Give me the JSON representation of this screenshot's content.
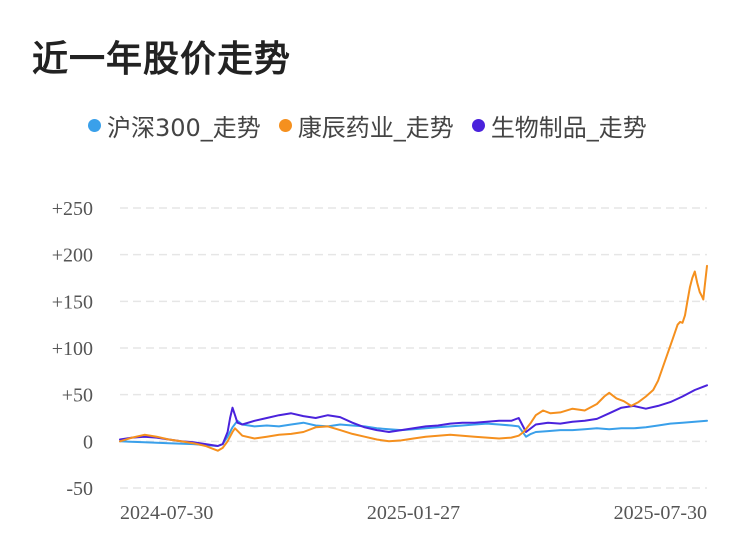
{
  "title": "近一年股价走势",
  "colors": {
    "hs300": "#3aa0ea",
    "kangchen": "#f5901e",
    "bio": "#4a22dc",
    "grid": "#e6e6e6"
  },
  "chart_data": {
    "type": "line",
    "title": "近一年股价走势",
    "xlabel": "",
    "ylabel": "",
    "ylim": [
      -50,
      250
    ],
    "yticks": [
      -50,
      0,
      50,
      100,
      150,
      200,
      250
    ],
    "ytick_labels": [
      "-50",
      "0",
      "+50",
      "+100",
      "+150",
      "+200",
      "+250"
    ],
    "xtick_labels": [
      "2024-07-30",
      "2025-01-27",
      "2025-07-30"
    ],
    "x_range": [
      0,
      240
    ],
    "xtick_positions": [
      0,
      120,
      240
    ],
    "grid": true,
    "legend_position": "top-left",
    "series": [
      {
        "name": "沪深300_走势",
        "color": "#3aa0ea",
        "points": [
          [
            0,
            0
          ],
          [
            10,
            -1
          ],
          [
            20,
            -2
          ],
          [
            30,
            -3
          ],
          [
            35,
            -4
          ],
          [
            40,
            -5
          ],
          [
            42,
            -3
          ],
          [
            44,
            5
          ],
          [
            46,
            15
          ],
          [
            48,
            22
          ],
          [
            50,
            18
          ],
          [
            55,
            16
          ],
          [
            60,
            17
          ],
          [
            65,
            16
          ],
          [
            70,
            18
          ],
          [
            75,
            20
          ],
          [
            80,
            17
          ],
          [
            85,
            16
          ],
          [
            90,
            18
          ],
          [
            95,
            17
          ],
          [
            100,
            16
          ],
          [
            105,
            14
          ],
          [
            110,
            13
          ],
          [
            115,
            12
          ],
          [
            120,
            13
          ],
          [
            125,
            14
          ],
          [
            130,
            15
          ],
          [
            135,
            16
          ],
          [
            140,
            17
          ],
          [
            145,
            18
          ],
          [
            150,
            19
          ],
          [
            155,
            18
          ],
          [
            160,
            17
          ],
          [
            163,
            16
          ],
          [
            166,
            5
          ],
          [
            168,
            8
          ],
          [
            170,
            10
          ],
          [
            175,
            11
          ],
          [
            180,
            12
          ],
          [
            185,
            12
          ],
          [
            190,
            13
          ],
          [
            195,
            14
          ],
          [
            200,
            13
          ],
          [
            205,
            14
          ],
          [
            210,
            14
          ],
          [
            215,
            15
          ],
          [
            220,
            17
          ],
          [
            225,
            19
          ],
          [
            230,
            20
          ],
          [
            235,
            21
          ],
          [
            240,
            22
          ]
        ]
      },
      {
        "name": "康辰药业_走势",
        "color": "#f5901e",
        "points": [
          [
            0,
            0
          ],
          [
            5,
            4
          ],
          [
            10,
            7
          ],
          [
            15,
            5
          ],
          [
            20,
            2
          ],
          [
            25,
            0
          ],
          [
            30,
            -2
          ],
          [
            35,
            -5
          ],
          [
            38,
            -8
          ],
          [
            40,
            -10
          ],
          [
            42,
            -7
          ],
          [
            44,
            0
          ],
          [
            46,
            10
          ],
          [
            47,
            14
          ],
          [
            50,
            6
          ],
          [
            55,
            3
          ],
          [
            60,
            5
          ],
          [
            65,
            7
          ],
          [
            70,
            8
          ],
          [
            75,
            10
          ],
          [
            80,
            15
          ],
          [
            85,
            16
          ],
          [
            90,
            12
          ],
          [
            95,
            8
          ],
          [
            100,
            5
          ],
          [
            105,
            2
          ],
          [
            110,
            0
          ],
          [
            115,
            1
          ],
          [
            120,
            3
          ],
          [
            125,
            5
          ],
          [
            130,
            6
          ],
          [
            135,
            7
          ],
          [
            140,
            6
          ],
          [
            145,
            5
          ],
          [
            150,
            4
          ],
          [
            155,
            3
          ],
          [
            160,
            4
          ],
          [
            163,
            6
          ],
          [
            165,
            10
          ],
          [
            168,
            20
          ],
          [
            170,
            28
          ],
          [
            173,
            33
          ],
          [
            176,
            30
          ],
          [
            180,
            31
          ],
          [
            185,
            35
          ],
          [
            190,
            33
          ],
          [
            195,
            40
          ],
          [
            198,
            48
          ],
          [
            200,
            52
          ],
          [
            203,
            46
          ],
          [
            206,
            43
          ],
          [
            209,
            38
          ],
          [
            212,
            42
          ],
          [
            215,
            48
          ],
          [
            218,
            55
          ],
          [
            220,
            65
          ],
          [
            222,
            80
          ],
          [
            224,
            95
          ],
          [
            226,
            110
          ],
          [
            228,
            125
          ],
          [
            229,
            128
          ],
          [
            230,
            127
          ],
          [
            231,
            135
          ],
          [
            232,
            150
          ],
          [
            233,
            165
          ],
          [
            234,
            175
          ],
          [
            235,
            182
          ],
          [
            236,
            170
          ],
          [
            237,
            160
          ],
          [
            238,
            155
          ],
          [
            238.5,
            152
          ],
          [
            239,
            165
          ],
          [
            240,
            188
          ]
        ]
      },
      {
        "name": "生物制品_走势",
        "color": "#4a22dc",
        "points": [
          [
            0,
            2
          ],
          [
            5,
            4
          ],
          [
            10,
            5
          ],
          [
            15,
            4
          ],
          [
            20,
            2
          ],
          [
            25,
            0
          ],
          [
            30,
            -1
          ],
          [
            35,
            -3
          ],
          [
            40,
            -5
          ],
          [
            42,
            -3
          ],
          [
            44,
            10
          ],
          [
            45,
            25
          ],
          [
            46,
            36
          ],
          [
            47,
            28
          ],
          [
            48,
            20
          ],
          [
            50,
            18
          ],
          [
            55,
            22
          ],
          [
            60,
            25
          ],
          [
            65,
            28
          ],
          [
            70,
            30
          ],
          [
            75,
            27
          ],
          [
            80,
            25
          ],
          [
            85,
            28
          ],
          [
            90,
            26
          ],
          [
            95,
            20
          ],
          [
            100,
            15
          ],
          [
            105,
            12
          ],
          [
            110,
            10
          ],
          [
            115,
            12
          ],
          [
            120,
            14
          ],
          [
            125,
            16
          ],
          [
            130,
            17
          ],
          [
            135,
            19
          ],
          [
            140,
            20
          ],
          [
            145,
            20
          ],
          [
            150,
            21
          ],
          [
            155,
            22
          ],
          [
            160,
            22
          ],
          [
            163,
            25
          ],
          [
            166,
            10
          ],
          [
            170,
            18
          ],
          [
            175,
            20
          ],
          [
            180,
            19
          ],
          [
            185,
            21
          ],
          [
            190,
            22
          ],
          [
            195,
            24
          ],
          [
            200,
            30
          ],
          [
            205,
            36
          ],
          [
            210,
            38
          ],
          [
            215,
            35
          ],
          [
            220,
            38
          ],
          [
            225,
            42
          ],
          [
            230,
            48
          ],
          [
            235,
            55
          ],
          [
            238,
            58
          ],
          [
            240,
            60
          ]
        ]
      }
    ]
  }
}
